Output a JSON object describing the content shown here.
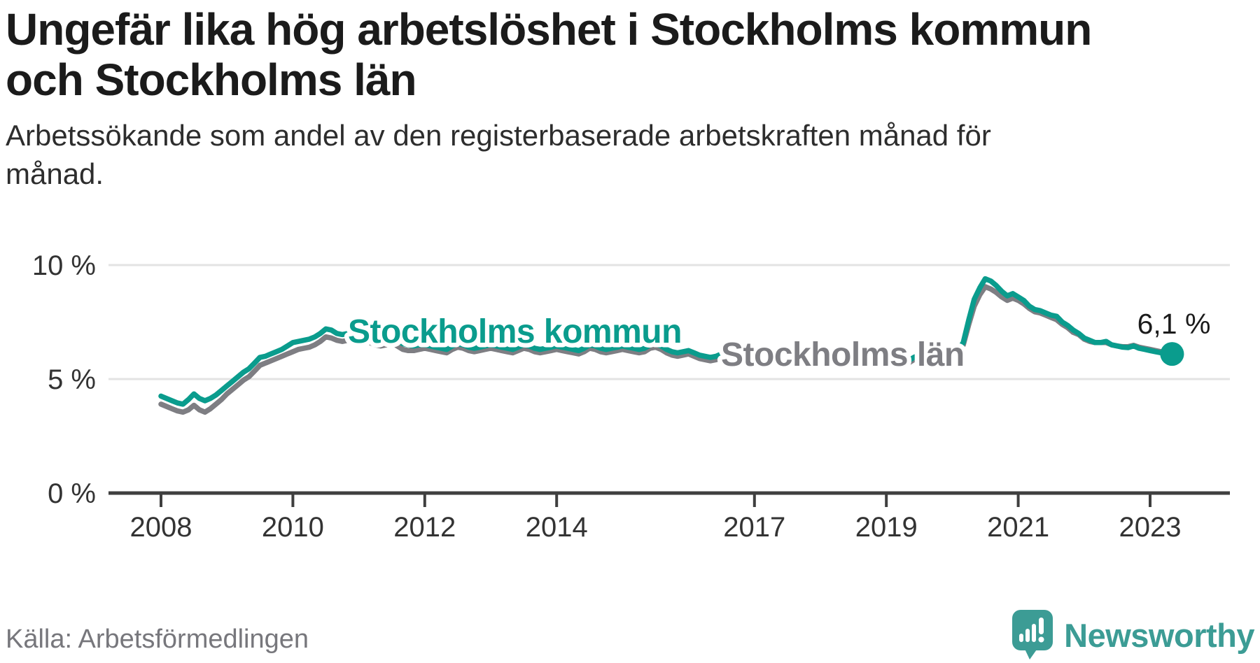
{
  "title_lines": [
    "Ungefär lika hög arbetslöshet i Stockholms kommun",
    "och Stockholms län"
  ],
  "subtitle_lines": [
    "Arbetssökande som andel av den registerbaserade arbetskraften månad för",
    "månad."
  ],
  "source": "Källa: Arbetsförmedlingen",
  "branding": {
    "name": "Newsworthy",
    "color": "#3c9c95"
  },
  "chart_data": {
    "type": "line",
    "title": "Ungefär lika hög arbetslöshet i Stockholms kommun och Stockholms län",
    "x_unit": "month",
    "x_start": "2008-01",
    "x_end": "2023-05",
    "x_ticks": [
      2008,
      2010,
      2012,
      2014,
      2017,
      2019,
      2021,
      2023
    ],
    "y_ticks": [
      {
        "value": 0,
        "label": "0 %"
      },
      {
        "value": 5,
        "label": "5 %"
      },
      {
        "value": 10,
        "label": "10 %"
      }
    ],
    "ylim": [
      0,
      10.8
    ],
    "grid": "horizontal",
    "end_label": "6,1 %",
    "end_value": 6.1,
    "colors": {
      "kommun": "#0a9c8d",
      "lan": "#7e7e83",
      "axis": "#3f3f3f",
      "gridline": "#e3e3e3",
      "tick_text": "#333333"
    },
    "series": [
      {
        "name": "Stockholms kommun",
        "color": "#0a9c8d",
        "values": [
          4.25,
          4.15,
          4.05,
          3.95,
          3.9,
          4.1,
          4.35,
          4.15,
          4.05,
          4.15,
          4.3,
          4.5,
          4.7,
          4.9,
          5.1,
          5.3,
          5.45,
          5.7,
          5.95,
          6.0,
          6.1,
          6.2,
          6.3,
          6.45,
          6.6,
          6.65,
          6.7,
          6.75,
          6.85,
          7.0,
          7.2,
          7.15,
          7.0,
          6.95,
          7.0,
          7.1,
          7.15,
          7.05,
          6.9,
          6.8,
          6.7,
          6.75,
          6.85,
          6.7,
          6.55,
          6.5,
          6.45,
          6.5,
          6.5,
          6.45,
          6.4,
          6.35,
          6.3,
          6.45,
          6.55,
          6.5,
          6.4,
          6.35,
          6.4,
          6.45,
          6.5,
          6.45,
          6.4,
          6.35,
          6.3,
          6.4,
          6.5,
          6.45,
          6.35,
          6.3,
          6.35,
          6.4,
          6.45,
          6.4,
          6.35,
          6.3,
          6.25,
          6.35,
          6.5,
          6.45,
          6.35,
          6.3,
          6.35,
          6.4,
          6.45,
          6.4,
          6.35,
          6.3,
          6.35,
          6.5,
          6.55,
          6.45,
          6.3,
          6.2,
          6.15,
          6.2,
          6.25,
          6.15,
          6.05,
          6.0,
          5.95,
          6.0,
          6.1,
          6.0,
          5.9,
          5.85,
          5.9,
          5.95,
          6.0,
          5.95,
          5.9,
          5.85,
          5.8,
          5.9,
          6.0,
          5.95,
          5.85,
          5.8,
          5.85,
          5.9,
          5.95,
          5.9,
          5.85,
          5.8,
          5.75,
          5.85,
          5.95,
          5.9,
          5.8,
          5.75,
          5.8,
          5.85,
          5.9,
          5.85,
          5.8,
          5.8,
          5.8,
          5.95,
          6.05,
          6.0,
          5.95,
          5.95,
          6.0,
          6.1,
          6.2,
          6.25,
          6.6,
          7.6,
          8.5,
          9.0,
          9.4,
          9.3,
          9.1,
          8.85,
          8.65,
          8.75,
          8.6,
          8.45,
          8.2,
          8.05,
          8.0,
          7.9,
          7.8,
          7.75,
          7.5,
          7.35,
          7.15,
          7.0,
          6.8,
          6.7,
          6.6,
          6.6,
          6.65,
          6.5,
          6.45,
          6.4,
          6.38,
          6.45,
          6.35,
          6.3,
          6.25,
          6.2,
          6.15,
          6.05,
          6.1
        ]
      },
      {
        "name": "Stockholms län",
        "color": "#7e7e83",
        "values": [
          3.9,
          3.8,
          3.7,
          3.6,
          3.55,
          3.65,
          3.85,
          3.65,
          3.55,
          3.7,
          3.9,
          4.1,
          4.35,
          4.55,
          4.75,
          4.95,
          5.1,
          5.35,
          5.6,
          5.7,
          5.8,
          5.9,
          6.0,
          6.1,
          6.2,
          6.3,
          6.35,
          6.4,
          6.5,
          6.65,
          6.85,
          6.8,
          6.7,
          6.65,
          6.7,
          6.8,
          6.85,
          6.75,
          6.6,
          6.5,
          6.45,
          6.5,
          6.6,
          6.45,
          6.3,
          6.25,
          6.25,
          6.3,
          6.35,
          6.3,
          6.25,
          6.2,
          6.15,
          6.3,
          6.4,
          6.35,
          6.25,
          6.2,
          6.25,
          6.3,
          6.35,
          6.3,
          6.25,
          6.2,
          6.15,
          6.25,
          6.35,
          6.3,
          6.2,
          6.15,
          6.2,
          6.25,
          6.3,
          6.25,
          6.2,
          6.15,
          6.1,
          6.2,
          6.35,
          6.3,
          6.2,
          6.15,
          6.2,
          6.25,
          6.3,
          6.25,
          6.2,
          6.15,
          6.2,
          6.35,
          6.4,
          6.3,
          6.15,
          6.05,
          6.0,
          6.05,
          6.1,
          6.0,
          5.9,
          5.85,
          5.8,
          5.85,
          5.95,
          5.9,
          5.8,
          5.75,
          5.8,
          5.85,
          5.9,
          5.85,
          5.8,
          5.75,
          5.7,
          5.8,
          5.9,
          5.85,
          5.75,
          5.7,
          5.75,
          5.8,
          5.85,
          5.8,
          5.75,
          5.7,
          5.65,
          5.75,
          5.85,
          5.8,
          5.7,
          5.65,
          5.7,
          5.75,
          5.8,
          5.75,
          5.7,
          5.7,
          5.7,
          5.85,
          5.95,
          5.9,
          5.85,
          5.85,
          5.9,
          6.0,
          6.1,
          6.15,
          6.5,
          7.4,
          8.2,
          8.7,
          9.05,
          8.95,
          8.8,
          8.6,
          8.45,
          8.55,
          8.45,
          8.3,
          8.1,
          7.95,
          7.9,
          7.8,
          7.7,
          7.6,
          7.4,
          7.25,
          7.05,
          6.95,
          6.75,
          6.65,
          6.6,
          6.6,
          6.6,
          6.5,
          6.45,
          6.42,
          6.42,
          6.48,
          6.4,
          6.35,
          6.3,
          6.25,
          6.2,
          6.1,
          6.1
        ]
      }
    ],
    "legend_position": "inline-labels"
  }
}
